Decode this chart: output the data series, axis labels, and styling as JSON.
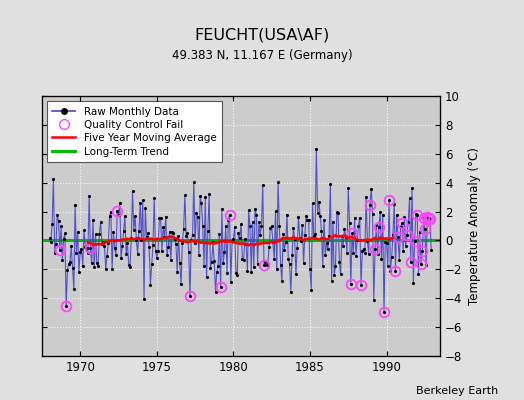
{
  "title": "FEUCHT(USA\\AF)",
  "subtitle": "49.383 N, 11.167 E (Germany)",
  "ylabel": "Temperature Anomaly (°C)",
  "xlabel_credit": "Berkeley Earth",
  "ylim": [
    -8,
    10
  ],
  "yticks": [
    -8,
    -6,
    -4,
    -2,
    0,
    2,
    4,
    6,
    8,
    10
  ],
  "xlim": [
    1967.5,
    1993.5
  ],
  "xticks": [
    1970,
    1975,
    1980,
    1985,
    1990
  ],
  "bg_color": "#e0e0e0",
  "plot_bg_color": "#cccccc",
  "raw_line_color": "#4444cc",
  "raw_marker_color": "#000000",
  "qc_fail_color": "#ff44ff",
  "moving_avg_color": "#ff0000",
  "trend_color": "#00bb00",
  "seed": 42,
  "start_year": 1968,
  "end_year": 1993,
  "n_months": 300
}
